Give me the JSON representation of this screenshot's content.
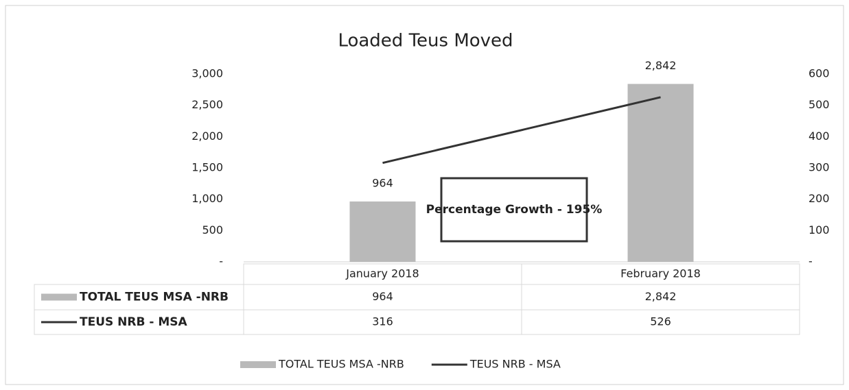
{
  "chart_data": {
    "type": "bar",
    "title": "Loaded Teus Moved",
    "categories": [
      "January 2018",
      "February 2018"
    ],
    "series": [
      {
        "name": "TOTAL TEUS MSA -NRB",
        "type": "bar",
        "color": "#b9b9b9",
        "values": [
          964,
          2842
        ],
        "value_labels": [
          "964",
          "2,842"
        ]
      },
      {
        "name": "TEUS NRB - MSA",
        "type": "line",
        "axis": "y2",
        "color": "#333333",
        "values": [
          316,
          526
        ]
      }
    ],
    "ylim": [
      0,
      3000
    ],
    "yticks": [
      {
        "value": 0,
        "label": "-"
      },
      500,
      {
        "value": 1000,
        "label": "1,000"
      },
      {
        "value": 1500,
        "label": "1,500"
      },
      {
        "value": 2000,
        "label": "2,000"
      },
      {
        "value": 2500,
        "label": "2,500"
      },
      {
        "value": 3000,
        "label": "3,000"
      }
    ],
    "y2lim": [
      0,
      600
    ],
    "y2ticks": [
      {
        "value": 0,
        "label": "-"
      },
      100,
      200,
      300,
      400,
      500,
      600
    ],
    "annotation": "Percentage Growth - 195%",
    "legend": "bottom"
  }
}
